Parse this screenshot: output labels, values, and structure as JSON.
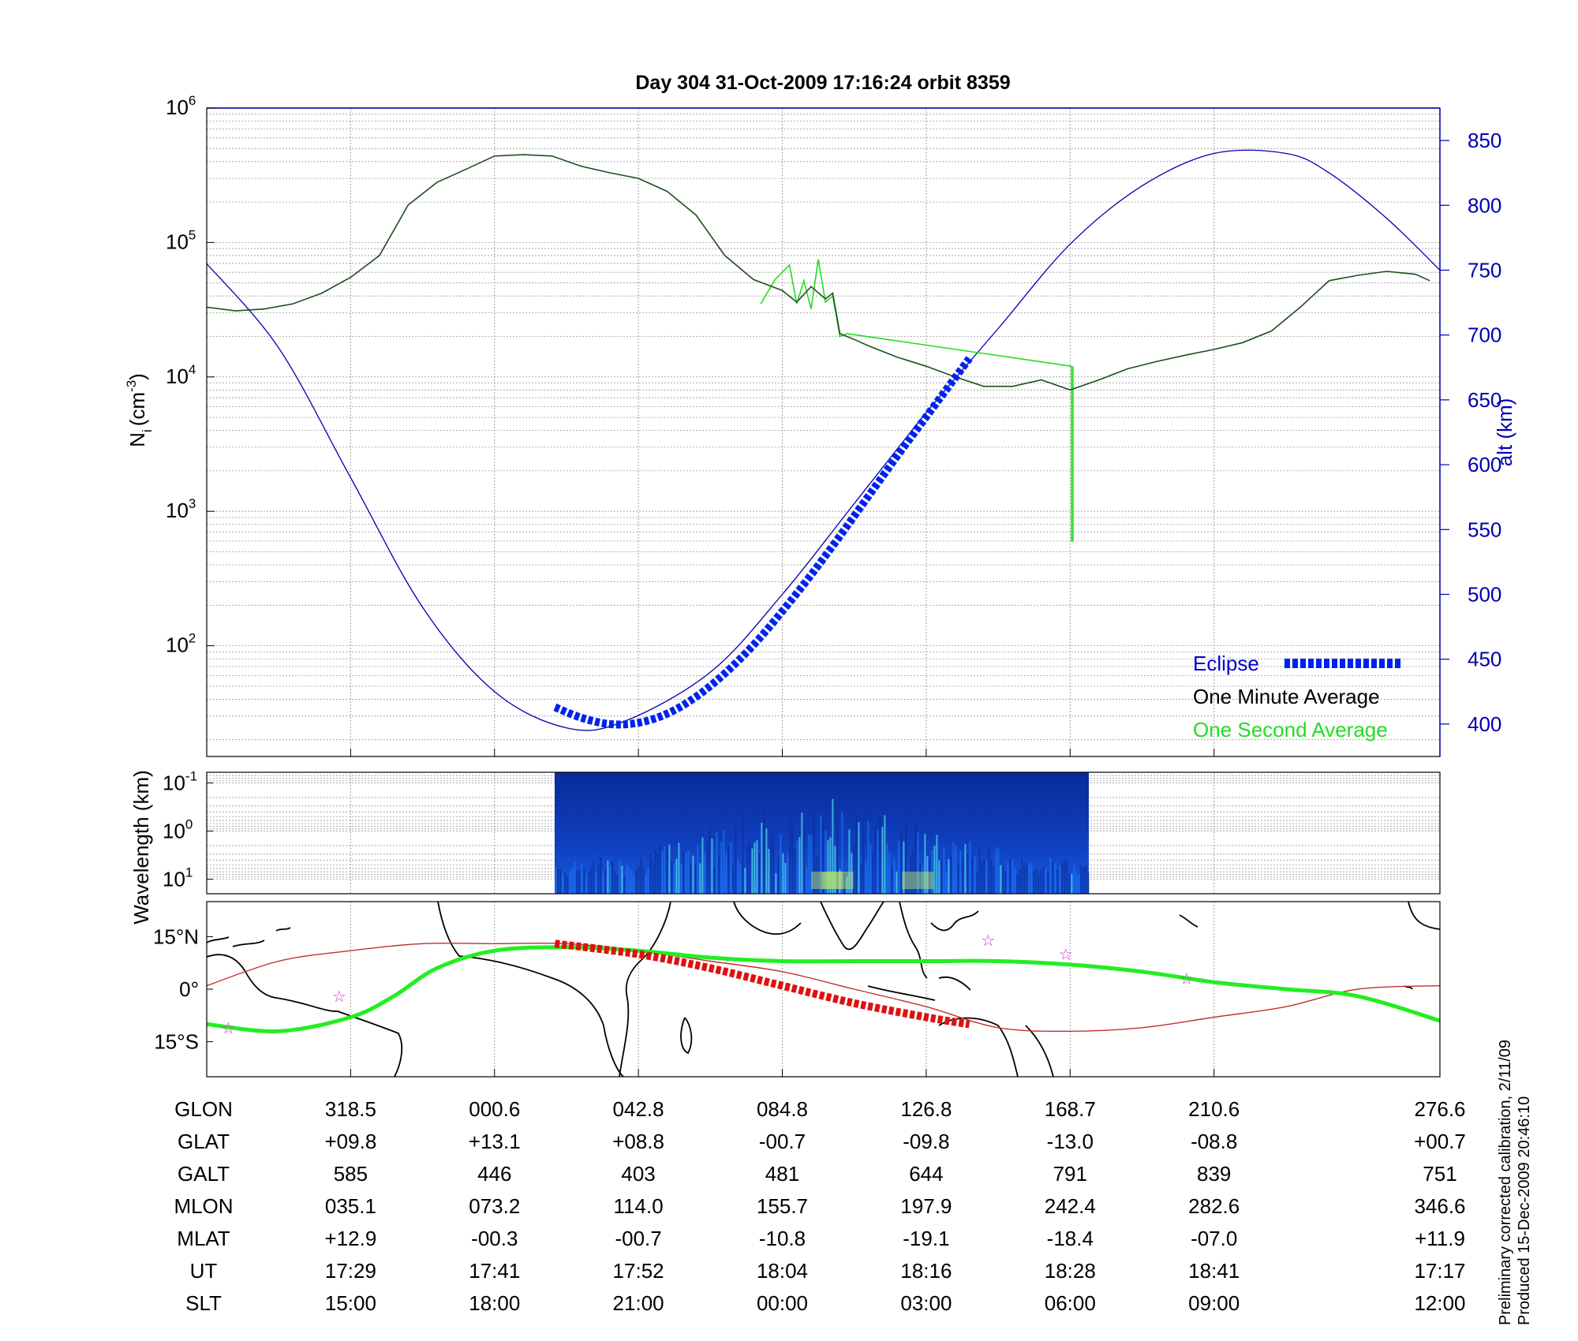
{
  "title": "Day 304  31-Oct-2009 17:16:24   orbit 8359",
  "footer": {
    "line1": "Preliminary corrected calibration, 2/11/09",
    "line2": "Produced 15-Dec-2009 20:46:10"
  },
  "colors": {
    "density_one_minute": "#1f4f1f",
    "density_one_second": "#22dd22",
    "altitude": "#0000b0",
    "eclipse": "#0022ee",
    "ground_track_green": "#22ee22",
    "ground_track_red": "#e01010",
    "magnetic_equator": "#c03030",
    "stars": "#cc33cc"
  },
  "chart_data": [
    {
      "type": "line",
      "panel": "density-altitude",
      "ylabel_left_base": "N",
      "ylabel_left_sub": "i",
      "ylabel_left_unit": "(cm",
      "ylabel_left_exp": "-3",
      "ylabel_left_close": ")",
      "ylabel_right": "alt (km)",
      "yscale_left": "log",
      "ylim_left": [
        15,
        1000000
      ],
      "yticks_left": [
        {
          "value": 100,
          "base": "10",
          "exp": "2"
        },
        {
          "value": 1000,
          "base": "10",
          "exp": "3"
        },
        {
          "value": 10000,
          "base": "10",
          "exp": "4"
        },
        {
          "value": 100000,
          "base": "10",
          "exp": "5"
        },
        {
          "value": 1000000,
          "base": "10",
          "exp": "6"
        }
      ],
      "ylim_right": [
        375,
        875
      ],
      "yticks_right": [
        "400",
        "450",
        "500",
        "550",
        "600",
        "650",
        "700",
        "750",
        "800",
        "850"
      ],
      "xlim": [
        0,
        8.57
      ],
      "grid": true,
      "legend": {
        "position": "bottom-right",
        "entries": [
          "Eclipse",
          "One Minute Average",
          "One Second Average"
        ]
      },
      "series": [
        {
          "name": "One Minute Average",
          "x": [
            0,
            0.2,
            0.4,
            0.6,
            0.8,
            1.0,
            1.2,
            1.4,
            1.6,
            1.8,
            2.0,
            2.2,
            2.4,
            2.6,
            2.8,
            3.0,
            3.2,
            3.4,
            3.6,
            3.8,
            4.0,
            4.1,
            4.2,
            4.3,
            4.35,
            4.4,
            4.5,
            4.6,
            4.8,
            5.0,
            5.2,
            5.4,
            5.6,
            5.8,
            6.0,
            6.2,
            6.4,
            6.6,
            6.8,
            7.0,
            7.2,
            7.4,
            7.6,
            7.8,
            8.0,
            8.2,
            8.4,
            8.5
          ],
          "y": [
            33000,
            31000,
            32000,
            35000,
            42000,
            55000,
            80000,
            190000,
            280000,
            350000,
            440000,
            450000,
            440000,
            370000,
            330000,
            300000,
            240000,
            160000,
            80000,
            53000,
            44000,
            36000,
            47000,
            38000,
            42000,
            21000,
            19000,
            17000,
            14000,
            12000,
            10000,
            8500,
            8500,
            9500,
            8000,
            9500,
            11500,
            13000,
            14500,
            16000,
            18000,
            22000,
            33000,
            52000,
            57000,
            61000,
            58000,
            52000
          ]
        },
        {
          "name": "One Second Average",
          "x": [
            3.85,
            3.95,
            4.05,
            4.1,
            4.15,
            4.2,
            4.25,
            4.3,
            4.35,
            4.4,
            4.45,
            6.01,
            6.01,
            6.02,
            6.02
          ],
          "y": [
            35000,
            53000,
            68000,
            35000,
            52000,
            32000,
            75000,
            36000,
            40000,
            20000,
            21000,
            12000,
            600,
            600,
            12000
          ]
        },
        {
          "name": "Altitude",
          "axis": "right",
          "x": [
            0,
            0.5,
            1.0,
            1.5,
            2.0,
            2.5,
            2.9,
            3.5,
            4.0,
            4.5,
            5.0,
            5.5,
            6.0,
            6.5,
            7.0,
            7.5,
            7.8,
            8.2,
            8.57
          ],
          "y": [
            755,
            690,
            590,
            490,
            425,
            397,
            402,
            440,
            500,
            570,
            640,
            705,
            770,
            815,
            840,
            840,
            825,
            790,
            750
          ]
        },
        {
          "name": "Eclipse",
          "axis": "right",
          "x": [
            2.42,
            2.6,
            2.8,
            3.0,
            3.2,
            3.4,
            3.6,
            3.8,
            4.0,
            4.2,
            4.4,
            4.6,
            4.8,
            5.0,
            5.2,
            5.3
          ],
          "y": [
            413,
            405,
            400,
            401,
            408,
            421,
            439,
            461,
            487,
            515,
            545,
            576,
            607,
            637,
            667,
            682
          ]
        }
      ]
    },
    {
      "type": "heatmap",
      "panel": "spectrogram",
      "ylabel": "Wavelength (km)",
      "yscale": "log",
      "yticks": [
        {
          "value": 0.1,
          "base": "10",
          "exp": "-1"
        },
        {
          "value": 1,
          "base": "10",
          "exp": "0"
        },
        {
          "value": 10,
          "base": "10",
          "exp": "1"
        }
      ],
      "ylim": [
        0.06,
        20
      ],
      "xlim": [
        0,
        8.57
      ],
      "data_xrange": [
        2.42,
        6.13
      ],
      "colormap": "jet",
      "grid": true
    },
    {
      "type": "line",
      "panel": "ground-track-map",
      "ytick_labels": [
        "15°N",
        "0°",
        "15°S"
      ],
      "ytick_values": [
        15,
        0,
        -15
      ],
      "ylim": [
        -25,
        25
      ],
      "xlim": [
        0,
        8.57
      ],
      "series": [
        {
          "name": "Ground track",
          "x": [
            0,
            0.5,
            1.0,
            1.3,
            1.6,
            2.0,
            2.5,
            3.0,
            3.5,
            4.0,
            4.5,
            5.0,
            5.5,
            6.0,
            6.5,
            7.0,
            7.5,
            8.0,
            8.57
          ],
          "y": [
            -10,
            -12,
            -8,
            -2,
            6,
            11,
            12,
            11,
            9,
            8,
            8,
            8,
            8,
            7,
            5,
            2,
            0,
            -2,
            -9
          ]
        },
        {
          "name": "Eclipse track",
          "x": [
            2.42,
            3.0,
            3.5,
            4.0,
            4.5,
            5.0,
            5.3
          ],
          "y": [
            13,
            10,
            6,
            1,
            -4,
            -8,
            -10
          ]
        },
        {
          "name": "Magnetic equator",
          "x": [
            0,
            0.5,
            1.0,
            1.5,
            2.0,
            2.5,
            3.0,
            3.5,
            4.0,
            4.5,
            5.0,
            5.5,
            6.0,
            6.5,
            7.0,
            7.5,
            8.0,
            8.57
          ],
          "y": [
            1,
            8,
            11,
            13,
            13,
            13,
            11,
            8,
            5,
            0,
            -5,
            -11,
            -12,
            -11,
            -8,
            -5,
            0,
            1
          ]
        }
      ],
      "markers": [
        {
          "x": 0.15,
          "y": -11
        },
        {
          "x": 0.92,
          "y": -2
        },
        {
          "x": 5.43,
          "y": 14
        },
        {
          "x": 5.97,
          "y": 10
        },
        {
          "x": 6.81,
          "y": 3
        }
      ]
    }
  ],
  "ephemeris": {
    "labels": [
      "GLON",
      "GLAT",
      "GALT",
      "MLON",
      "MLAT",
      "UT",
      "SLT"
    ],
    "columns": [
      [
        "318.5",
        "+09.8",
        "585",
        "035.1",
        "+12.9",
        "17:29",
        "15:00"
      ],
      [
        "000.6",
        "+13.1",
        "446",
        "073.2",
        "-00.3",
        "17:41",
        "18:00"
      ],
      [
        "042.8",
        "+08.8",
        "403",
        "114.0",
        "-00.7",
        "17:52",
        "21:00"
      ],
      [
        "084.8",
        "-00.7",
        "481",
        "155.7",
        "-10.8",
        "18:04",
        "00:00"
      ],
      [
        "126.8",
        "-09.8",
        "644",
        "197.9",
        "-19.1",
        "18:16",
        "03:00"
      ],
      [
        "168.7",
        "-13.0",
        "791",
        "242.4",
        "-18.4",
        "18:28",
        "06:00"
      ],
      [
        "210.6",
        "-08.8",
        "839",
        "282.6",
        "-07.0",
        "18:41",
        "09:00"
      ],
      [
        "276.6",
        "+00.7",
        "751",
        "346.6",
        "+11.9",
        "17:17",
        "12:00"
      ]
    ]
  }
}
